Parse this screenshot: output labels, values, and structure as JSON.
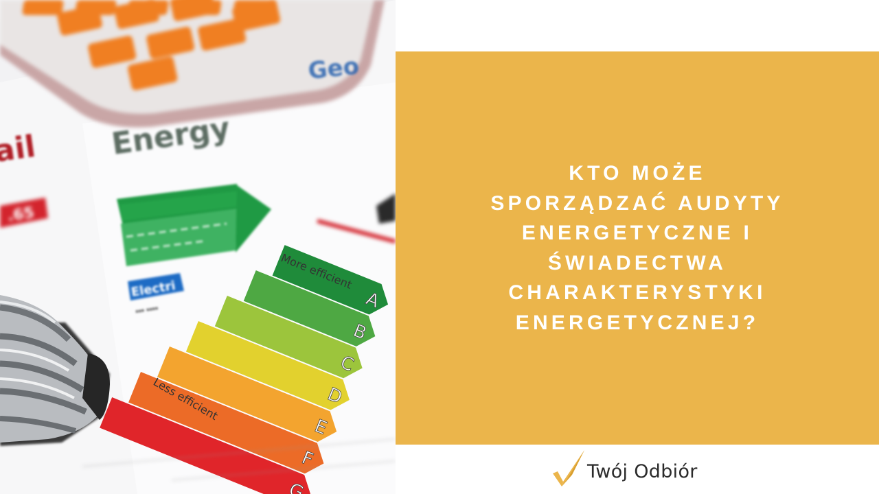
{
  "photo": {
    "label_words": [
      "Energy"
    ],
    "rating_letters": [
      "A",
      "B",
      "C",
      "D",
      "E",
      "F",
      "G"
    ],
    "rating_colors": [
      "#1f8b3a",
      "#4ea843",
      "#9cc53c",
      "#e2d12e",
      "#f3a42f",
      "#ec6b27",
      "#e0252a"
    ],
    "more_efficient": "More efficient",
    "less_efficient": "Less efficient",
    "electric_label": "Electri"
  },
  "headline": {
    "lines": [
      "KTO MOŻE",
      "SPORZĄDZAĆ AUDYTY",
      "ENERGETYCZNE I",
      "ŚWIADECTWA",
      "CHARAKTERYSTYKI",
      "ENERGETYCZNEJ?"
    ]
  },
  "brand": {
    "name": "Twój Odbiór",
    "icon": "checkmark-icon",
    "accent": "#ebb54b"
  },
  "colors": {
    "panel": "#ebb54b",
    "headline_text": "#ffffff"
  }
}
